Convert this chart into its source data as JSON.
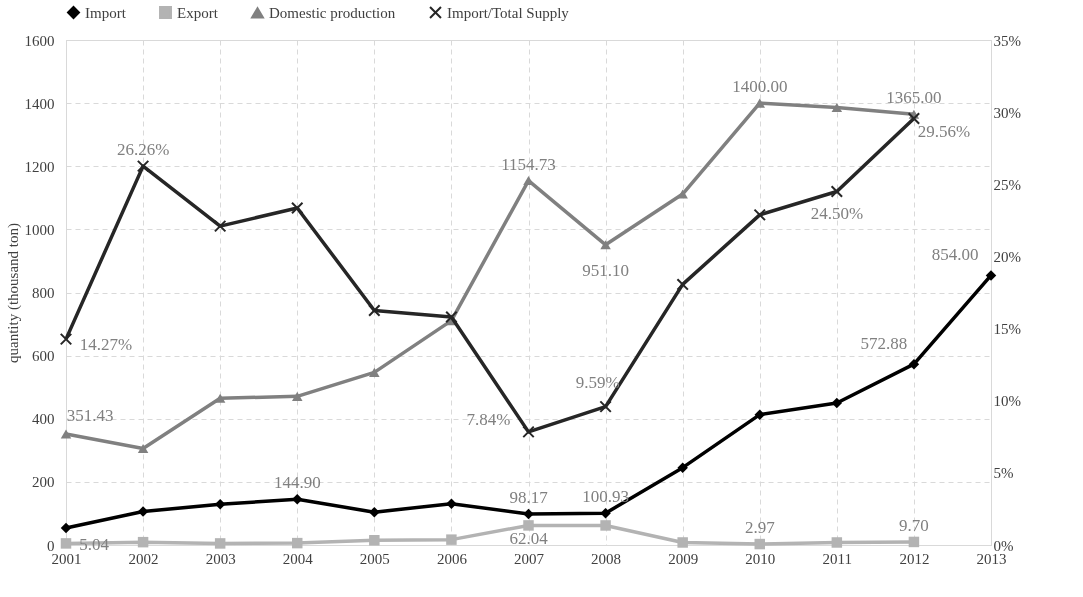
{
  "chart_data": {
    "type": "line",
    "ylabel": "quantity (thousand ton)",
    "categories": [
      "2001",
      "2002",
      "2003",
      "2004",
      "2005",
      "2006",
      "2007",
      "2008",
      "2009",
      "2010",
      "2011",
      "2012",
      "2013"
    ],
    "series": [
      {
        "name": "Import",
        "color": "#000000",
        "marker": "diamond",
        "values": [
          54,
          106,
          129,
          144.9,
          104,
          131,
          98.17,
          100.93,
          245,
          413,
          450,
          572.88,
          854
        ],
        "value_labels": [
          null,
          null,
          null,
          "144.90",
          null,
          null,
          "98.17",
          "100.93",
          null,
          null,
          null,
          "572.88",
          "854.00"
        ]
      },
      {
        "name": "Export",
        "color": "#b3b3b3",
        "marker": "square",
        "values": [
          5.04,
          9,
          5,
          6,
          15,
          17,
          62.04,
          62,
          8,
          2.97,
          8,
          9.7,
          null
        ],
        "value_labels": [
          "5.04",
          null,
          null,
          null,
          null,
          null,
          "62.04",
          null,
          null,
          "2.97",
          null,
          "9.70",
          null
        ]
      },
      {
        "name": "Domestic production",
        "color": "#808080",
        "marker": "triangle",
        "values": [
          351.43,
          306,
          465,
          471,
          547,
          711,
          1154.73,
          951.1,
          1112,
          1400,
          1386,
          1365,
          null
        ],
        "value_labels": [
          "351.43",
          null,
          null,
          null,
          null,
          null,
          "1154.73",
          "951.10",
          null,
          "1400.00",
          null,
          "1365.00",
          null
        ]
      },
      {
        "name": "Import/Total Supply",
        "color": "#262626",
        "marker": "cross",
        "axis": "y2",
        "values": [
          14.27,
          26.26,
          22.1,
          23.36,
          16.25,
          15.8,
          7.84,
          9.59,
          18.06,
          22.88,
          24.5,
          29.56,
          null
        ],
        "value_labels": [
          "14.27%",
          "26.26%",
          null,
          null,
          null,
          null,
          "7.84%",
          "9.59%",
          null,
          null,
          "24.50%",
          "29.56%",
          null
        ]
      }
    ],
    "ylim": [
      0,
      1600
    ],
    "yticks": [
      0,
      200,
      400,
      600,
      800,
      1000,
      1200,
      1400,
      1600
    ],
    "y2lim": [
      0,
      35
    ],
    "y2ticks": [
      {
        "value": 0,
        "label": "0%"
      },
      {
        "value": 5,
        "label": "5%"
      },
      {
        "value": 10,
        "label": "10%"
      },
      {
        "value": 15,
        "label": "15%"
      },
      {
        "value": 20,
        "label": "20%"
      },
      {
        "value": 25,
        "label": "25%"
      },
      {
        "value": 30,
        "label": "30%"
      },
      {
        "value": 35,
        "label": "35%"
      }
    ],
    "grid": true,
    "legend": "top"
  }
}
